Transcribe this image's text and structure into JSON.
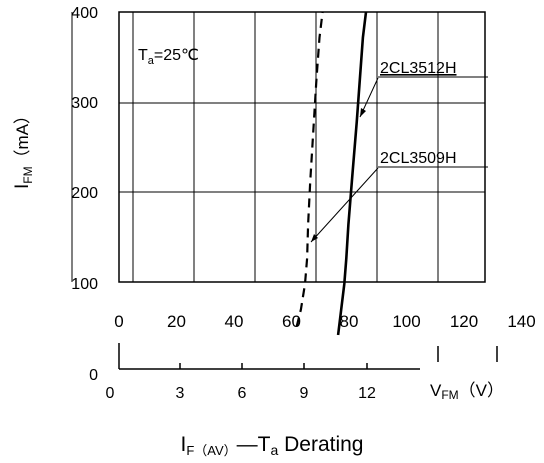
{
  "chart_data": {
    "type": "line",
    "title": "IF(AV)—Ta Derating",
    "title_parts": {
      "i": "I",
      "i_sub": "F（AV）",
      "dash": "—T",
      "ta_sub": "a",
      "rest": " Derating"
    },
    "ylabel": {
      "main": "I",
      "sub": "FM",
      "unit": "（mA）"
    },
    "xlabel": {
      "main": "V",
      "sub": "FM",
      "unit": "（V）"
    },
    "annotation": {
      "main": "T",
      "sub": "a",
      "rest": "=25℃"
    },
    "grid": true,
    "y_axis": {
      "range": [
        0,
        400
      ],
      "ticks": [
        "0",
        "100",
        "200",
        "300",
        "400"
      ]
    },
    "x_axis_lower": {
      "label_values": [
        0,
        3,
        6,
        9,
        12
      ],
      "ticks": [
        "0",
        "3",
        "6",
        "9",
        "12"
      ]
    },
    "x_axis_upper": {
      "ticks": [
        "0",
        "20",
        "40",
        "60",
        "80",
        "100",
        "120",
        "140"
      ]
    },
    "series": [
      {
        "name": "2CL3509H",
        "style": "dashed",
        "points": [
          [
            8.6,
            30
          ],
          [
            8.8,
            50
          ],
          [
            9.0,
            80
          ],
          [
            9.1,
            110
          ],
          [
            9.15,
            150
          ],
          [
            9.25,
            200
          ],
          [
            9.4,
            260
          ],
          [
            9.55,
            320
          ],
          [
            9.7,
            370
          ],
          [
            9.85,
            400
          ]
        ]
      },
      {
        "name": "2CL3512H",
        "style": "solid",
        "points": [
          [
            10.6,
            20
          ],
          [
            10.75,
            50
          ],
          [
            10.9,
            80
          ],
          [
            11.0,
            110
          ],
          [
            11.1,
            150
          ],
          [
            11.3,
            210
          ],
          [
            11.5,
            270
          ],
          [
            11.65,
            320
          ],
          [
            11.8,
            370
          ],
          [
            11.95,
            400
          ]
        ]
      }
    ]
  }
}
